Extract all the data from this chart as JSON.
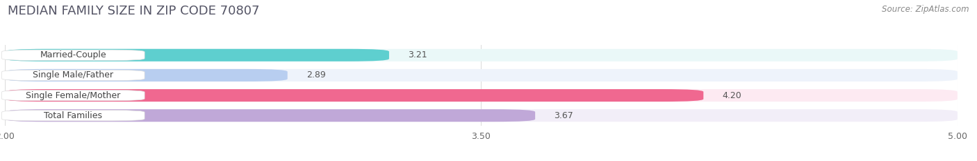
{
  "title": "MEDIAN FAMILY SIZE IN ZIP CODE 70807",
  "source": "Source: ZipAtlas.com",
  "categories": [
    "Married-Couple",
    "Single Male/Father",
    "Single Female/Mother",
    "Total Families"
  ],
  "values": [
    3.21,
    2.89,
    4.2,
    3.67
  ],
  "bar_colors": [
    "#5ecfcf",
    "#b8cef0",
    "#f06890",
    "#c0a8d8"
  ],
  "bar_background_colors": [
    "#eaf8f8",
    "#eef3fb",
    "#fdeaf2",
    "#f2eef8"
  ],
  "xlim": [
    2.0,
    5.0
  ],
  "xticks": [
    2.0,
    3.5,
    5.0
  ],
  "xtick_labels": [
    "2.00",
    "3.50",
    "5.00"
  ],
  "bar_height": 0.62,
  "figsize": [
    14.06,
    2.33
  ],
  "dpi": 100,
  "title_fontsize": 13,
  "label_fontsize": 9,
  "value_fontsize": 9,
  "source_fontsize": 8.5,
  "background_color": "#ffffff",
  "grid_color": "#dddddd",
  "label_box_color": "#ffffff",
  "title_color": "#555566",
  "source_color": "#888888",
  "value_color": "#555555"
}
